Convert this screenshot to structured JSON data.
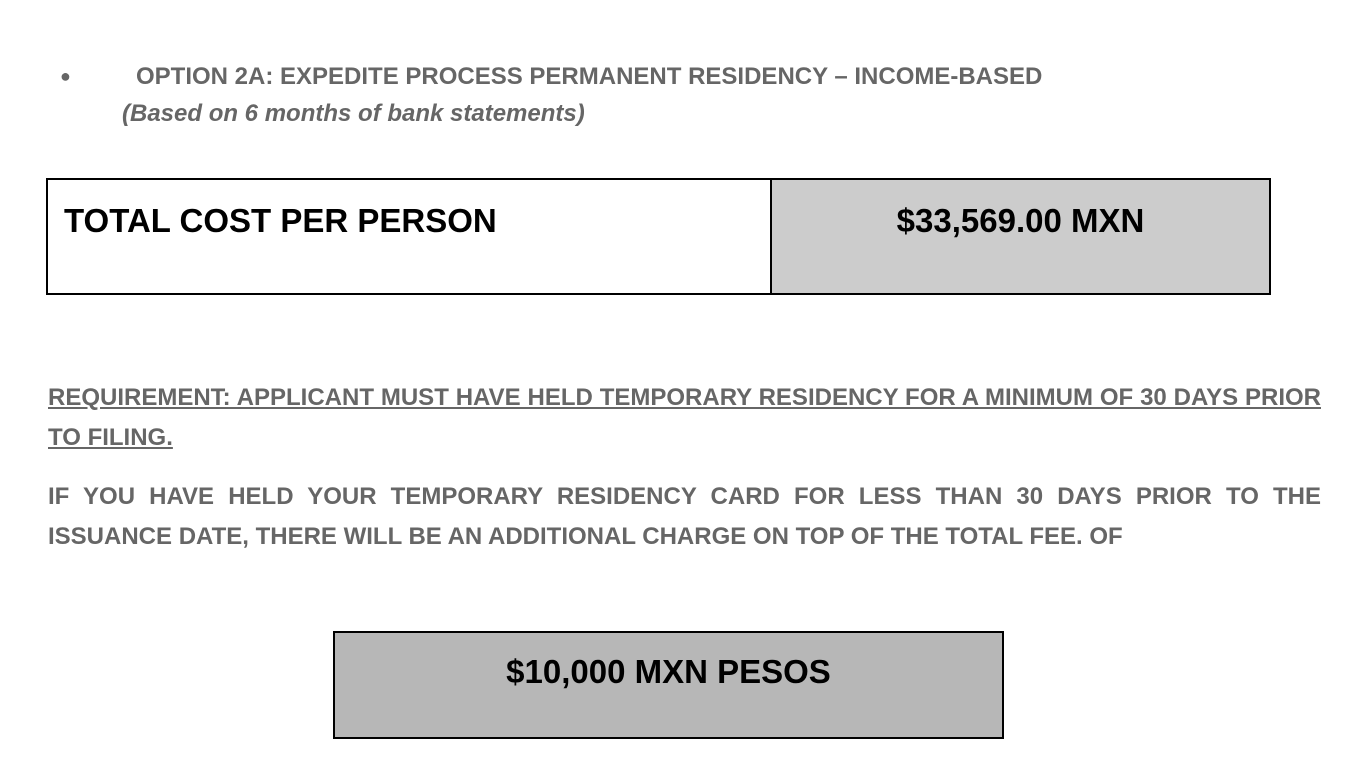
{
  "option": {
    "bullet": "●",
    "title": "OPTION 2A: EXPEDITE PROCESS  PERMANENT RESIDENCY – INCOME-BASED",
    "subtitle": "(Based on 6 months of bank statements)"
  },
  "cost_table": {
    "label": "TOTAL COST PER PERSON",
    "value": "$33,569.00 MXN"
  },
  "requirement": "REQUIREMENT: APPLICANT MUST HAVE HELD TEMPORARY RESIDENCY FOR A MINIMUM OF 30 DAYS PRIOR TO FILING.",
  "additional_charge_note": "IF YOU HAVE HELD YOUR TEMPORARY RESIDENCY CARD FOR LESS THAN 30 DAYS PRIOR TO THE ISSUANCE DATE, THERE WILL BE AN ADDITIONAL CHARGE ON TOP OF THE TOTAL FEE. OF",
  "additional_charge": "$10,000 MXN PESOS",
  "colors": {
    "heading_text": "#666666",
    "value_cell": "#cccccc",
    "charge_box": "#b7b7b7"
  }
}
